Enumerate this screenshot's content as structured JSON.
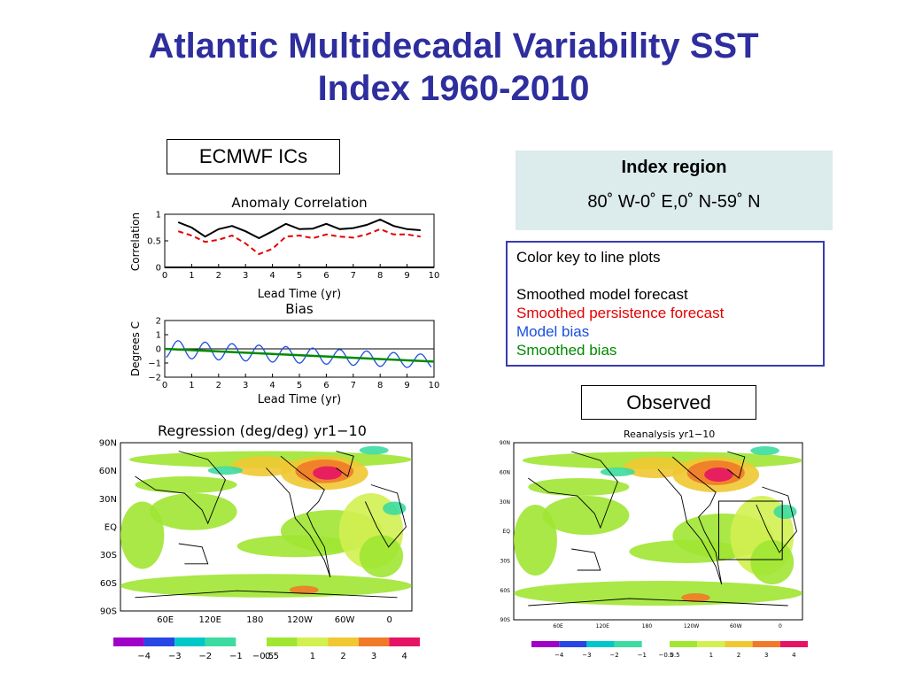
{
  "title": {
    "line1": "Atlantic Multidecadal Variability SST",
    "line2": "Index 1960-2010"
  },
  "labels": {
    "ecmwf": "ECMWF ICs",
    "observed": "Observed"
  },
  "index_region": {
    "heading": "Index region",
    "value": "80˚ W-0˚ E,0˚ N-59˚ N"
  },
  "color_key": {
    "heading": "Color key to line plots",
    "items": [
      "Smoothed model forecast",
      "Smoothed persistence forecast",
      "Model bias",
      "Smoothed bias"
    ],
    "colors": [
      "#000000",
      "#e60000",
      "#1a4fe0",
      "#008a00"
    ]
  },
  "chart_data": [
    {
      "type": "line",
      "title": "Anomaly Correlation",
      "xlabel": "Lead Time (yr)",
      "ylabel": "Correlation",
      "xlim": [
        0,
        10
      ],
      "ylim": [
        0,
        1
      ],
      "xticks": [
        "0",
        "1",
        "2",
        "3",
        "4",
        "5",
        "6",
        "7",
        "8",
        "9",
        "10"
      ],
      "yticks": [
        "0",
        "0.5",
        "1"
      ],
      "series": [
        {
          "color": "#000000",
          "style": "solid",
          "x": [
            0.5,
            1,
            1.5,
            2,
            2.5,
            3,
            3.5,
            4,
            4.5,
            5,
            5.5,
            6,
            6.5,
            7,
            7.5,
            8,
            8.5,
            9,
            9.5
          ],
          "y": [
            0.85,
            0.75,
            0.58,
            0.72,
            0.78,
            0.68,
            0.55,
            0.68,
            0.82,
            0.72,
            0.73,
            0.82,
            0.72,
            0.74,
            0.8,
            0.9,
            0.78,
            0.72,
            0.7
          ]
        },
        {
          "color": "#e60000",
          "style": "dashed",
          "x": [
            0.5,
            1,
            1.5,
            2,
            2.5,
            3,
            3.5,
            4,
            4.5,
            5,
            5.5,
            6,
            6.5,
            7,
            7.5,
            8,
            8.5,
            9,
            9.5
          ],
          "y": [
            0.68,
            0.6,
            0.48,
            0.52,
            0.6,
            0.45,
            0.25,
            0.35,
            0.58,
            0.6,
            0.55,
            0.62,
            0.58,
            0.56,
            0.62,
            0.72,
            0.62,
            0.62,
            0.58
          ]
        }
      ]
    },
    {
      "type": "line",
      "title": "Bias",
      "xlabel": "Lead Time (yr)",
      "ylabel": "Degrees C",
      "xlim": [
        0,
        10
      ],
      "ylim": [
        -2,
        2
      ],
      "xticks": [
        "0",
        "1",
        "2",
        "3",
        "4",
        "5",
        "6",
        "7",
        "8",
        "9",
        "10"
      ],
      "yticks": [
        "−2",
        "−1",
        "0",
        "1",
        "2"
      ],
      "series": [
        {
          "color": "#1a4fe0",
          "style": "solid",
          "kind": "oscillation",
          "amp": 0.7,
          "period": 1,
          "trend": [
            0,
            -0.9
          ]
        },
        {
          "color": "#008a00",
          "style": "solid",
          "x": [
            0,
            10
          ],
          "y": [
            0,
            -0.9
          ]
        }
      ]
    }
  ],
  "maps": {
    "left": {
      "title": "Regression (deg/deg) yr1−10",
      "lat_labels": [
        "90N",
        "60N",
        "30N",
        "EQ",
        "30S",
        "60S",
        "90S"
      ],
      "lon_labels": [
        "60E",
        "120E",
        "180",
        "120W",
        "60W",
        "0"
      ]
    },
    "right": {
      "title": "Reanalysis yr1−10",
      "lat_labels": [
        "90N",
        "60N",
        "30N",
        "EQ",
        "30S",
        "60S",
        "90S"
      ],
      "lon_labels": [
        "60E",
        "120E",
        "180",
        "120W",
        "60W",
        "0"
      ]
    },
    "colorbar": {
      "labels": [
        "−4",
        "−3",
        "−2",
        "−1",
        "−0.5",
        "0.5",
        "1",
        "2",
        "3",
        "4"
      ],
      "colors": [
        "#a000c8",
        "#2846e6",
        "#00c8c8",
        "#3cdca0",
        "#ffffff",
        "#a0e632",
        "#d2f050",
        "#f0c832",
        "#f07a28",
        "#e61464"
      ]
    }
  }
}
